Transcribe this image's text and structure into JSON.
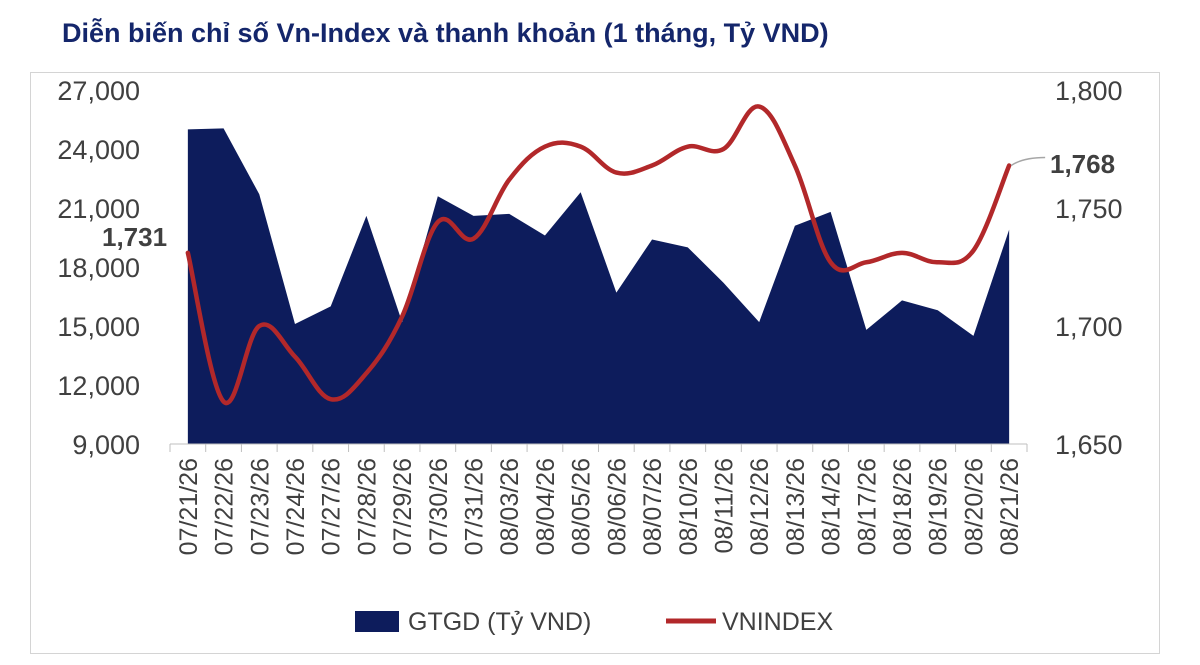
{
  "title": "Diễn biến chỉ số Vn-Index và thanh khoản (1 tháng, Tỷ VND)",
  "chart_data": {
    "type": "area",
    "categories": [
      "07/21/26",
      "07/22/26",
      "07/23/26",
      "07/24/26",
      "07/27/26",
      "07/28/26",
      "07/29/26",
      "07/30/26",
      "07/31/26",
      "08/03/26",
      "08/04/26",
      "08/05/26",
      "08/06/26",
      "08/07/26",
      "08/10/26",
      "08/11/26",
      "08/12/26",
      "08/13/26",
      "08/14/26",
      "08/17/26",
      "08/18/26",
      "08/19/26",
      "08/20/26",
      "08/21/26"
    ],
    "series": [
      {
        "name": "GTGD (Tỷ VND)",
        "type": "area",
        "axis": "left",
        "color": "#0d1c5c",
        "values": [
          25000,
          25050,
          21700,
          15100,
          16000,
          20600,
          15200,
          21600,
          20600,
          20700,
          19600,
          21800,
          16700,
          19400,
          19000,
          17200,
          15200,
          20100,
          20800,
          14800,
          16300,
          15800,
          14500,
          19900
        ]
      },
      {
        "name": "VNINDEX",
        "type": "line",
        "axis": "right",
        "color": "#b2282a",
        "values": [
          1731,
          1668,
          1700,
          1687,
          1669,
          1680,
          1704,
          1744,
          1737,
          1762,
          1776,
          1776,
          1765,
          1768,
          1776,
          1775,
          1793,
          1768,
          1727,
          1727,
          1731,
          1727,
          1732,
          1768
        ]
      }
    ],
    "y_left": {
      "ticks": [
        "27,000",
        "24,000",
        "21,000",
        "18,000",
        "15,000",
        "12,000",
        "9,000"
      ],
      "min": 9000,
      "max": 27000
    },
    "y_right": {
      "ticks": [
        "1,800",
        "1,750",
        "1,700",
        "1,650"
      ],
      "min": 1650,
      "max": 1800
    },
    "annotations": {
      "first": "1,731",
      "last": "1,768"
    },
    "legend_position": "bottom",
    "grid": false
  }
}
